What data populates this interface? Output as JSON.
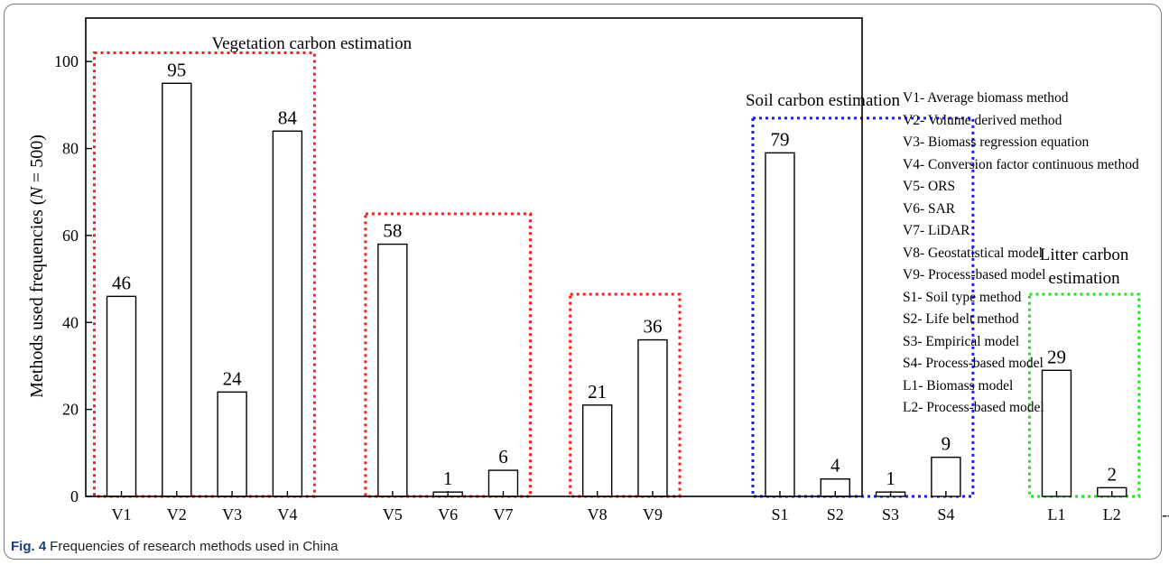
{
  "chart_data": {
    "type": "bar",
    "categories": [
      "V1",
      "V2",
      "V3",
      "V4",
      "V5",
      "V6",
      "V7",
      "V8",
      "V9",
      "S1",
      "S2",
      "S3",
      "S4",
      "L1",
      "L2"
    ],
    "values": [
      46,
      95,
      24,
      84,
      58,
      1,
      6,
      21,
      36,
      79,
      4,
      1,
      9,
      29,
      2
    ],
    "ylabel_pre": "Methods used frequencies (",
    "ylabel_italic": "N",
    "ylabel_post": " = 500)",
    "ylim": [
      0,
      110
    ],
    "yticks": [
      0,
      20,
      40,
      60,
      80,
      100
    ],
    "x_trailing_tick": "--",
    "groups": [
      {
        "label": "Vegetation carbon estimation",
        "members": [
          "V1",
          "V2",
          "V3",
          "V4"
        ],
        "box_top": 102,
        "color": "#ff1a1a"
      },
      {
        "label": "",
        "members": [
          "V5",
          "V6",
          "V7"
        ],
        "box_top": 65,
        "color": "#ff1a1a"
      },
      {
        "label": "",
        "members": [
          "V8",
          "V9"
        ],
        "box_top": 46.5,
        "color": "#ff1a1a"
      },
      {
        "label": "Soil carbon estimation",
        "members": [
          "S1",
          "S2",
          "S3",
          "S4"
        ],
        "box_top": 87,
        "color": "#1a1aff"
      },
      {
        "label": "Litter carbon\nestimation",
        "members": [
          "L1",
          "L2"
        ],
        "box_top": 46.5,
        "color": "#1ae61a"
      }
    ],
    "grid": false
  },
  "legend": [
    "V1- Average biomass method",
    "V2- Volume derived method",
    "V3- Biomass regression equation",
    "V4- Conversion factor continuous method",
    "V5- ORS",
    "V6- SAR",
    "V7- LiDAR",
    "V8- Geostatistical model",
    "V9- Process-based model",
    "S1- Soil type method",
    "S2- Life belt method",
    "S3- Empirical model",
    "S4- Process-based model",
    "L1- Biomass model",
    "L2- Process-based model"
  ],
  "caption": {
    "label": "Fig. 4",
    "text": "Frequencies of research methods used in China"
  }
}
